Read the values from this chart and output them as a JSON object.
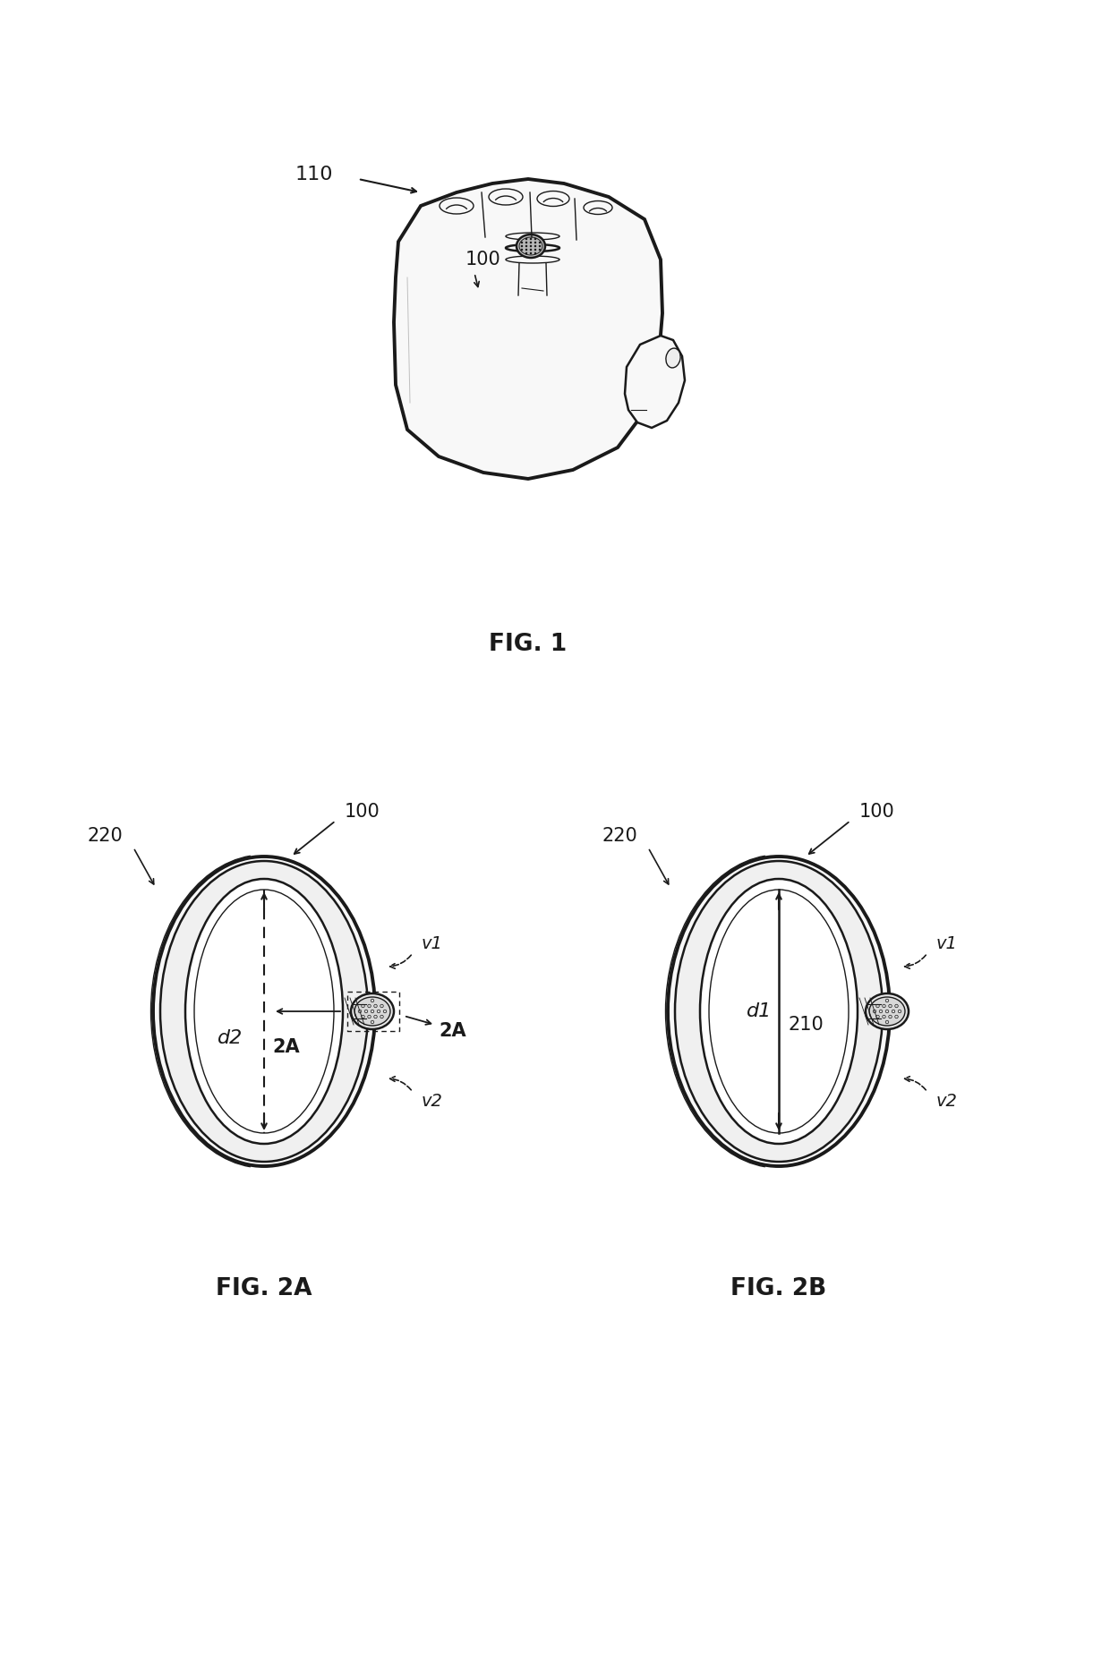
{
  "fig1_label": "FIG. 1",
  "fig2a_label": "FIG. 2A",
  "fig2b_label": "FIG. 2B",
  "label_100_fig1": "100",
  "label_110": "110",
  "label_100_fig2a": "100",
  "label_100_fig2b": "100",
  "label_220_fig2a": "220",
  "label_220_fig2b": "220",
  "label_d2": "d2",
  "label_d1": "d1",
  "label_2A_left": "2A",
  "label_2A_right": "2A",
  "label_210": "210",
  "label_v1_fig2a": "v1",
  "label_v2_fig2a": "v2",
  "label_v1_fig2b": "v1",
  "label_v2_fig2b": "v2",
  "bg_color": "#ffffff",
  "line_color": "#1a1a1a",
  "font_size_labels": 14,
  "font_size_fig_labels": 16
}
